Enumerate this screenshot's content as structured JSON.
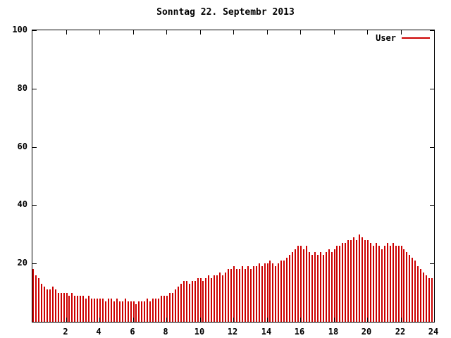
{
  "title": "Sonntag 22. Septembr 2013",
  "legend": {
    "label": "User",
    "color": "#cc0000"
  },
  "chart_data": {
    "type": "bar",
    "title": "Sonntag 22. Septembr 2013",
    "xlabel": "",
    "ylabel": "",
    "xlim": [
      0,
      24
    ],
    "ylim": [
      0,
      100
    ],
    "x_ticks": [
      2,
      4,
      6,
      8,
      10,
      12,
      14,
      16,
      18,
      20,
      22,
      24
    ],
    "y_ticks": [
      20,
      40,
      60,
      80,
      100
    ],
    "grid": false,
    "legend_position": "top-right",
    "bar_color": "#cc0000",
    "series": [
      {
        "name": "User",
        "color": "#cc0000",
        "interval_minutes": 10,
        "x_unit": "hour-of-day",
        "values": [
          18,
          16,
          15,
          13,
          12,
          11,
          11,
          12,
          11,
          10,
          10,
          10,
          10,
          9,
          10,
          9,
          9,
          9,
          9,
          8,
          9,
          8,
          8,
          8,
          8,
          8,
          7,
          8,
          8,
          7,
          8,
          7,
          7,
          8,
          7,
          7,
          7,
          6,
          7,
          7,
          7,
          8,
          7,
          8,
          8,
          8,
          9,
          9,
          9,
          10,
          10,
          11,
          12,
          13,
          14,
          14,
          13,
          14,
          14,
          15,
          15,
          14,
          15,
          16,
          15,
          16,
          16,
          17,
          16,
          17,
          18,
          18,
          19,
          18,
          18,
          19,
          18,
          19,
          18,
          19,
          19,
          20,
          19,
          20,
          20,
          21,
          20,
          19,
          20,
          21,
          21,
          22,
          23,
          24,
          25,
          26,
          26,
          25,
          26,
          24,
          23,
          24,
          23,
          24,
          23,
          24,
          25,
          24,
          25,
          26,
          26,
          27,
          27,
          28,
          28,
          29,
          28,
          30,
          29,
          28,
          28,
          27,
          26,
          27,
          26,
          25,
          26,
          27,
          26,
          27,
          26,
          26,
          26,
          25,
          24,
          23,
          22,
          21,
          19,
          18,
          17,
          16,
          15,
          15
        ]
      }
    ]
  }
}
